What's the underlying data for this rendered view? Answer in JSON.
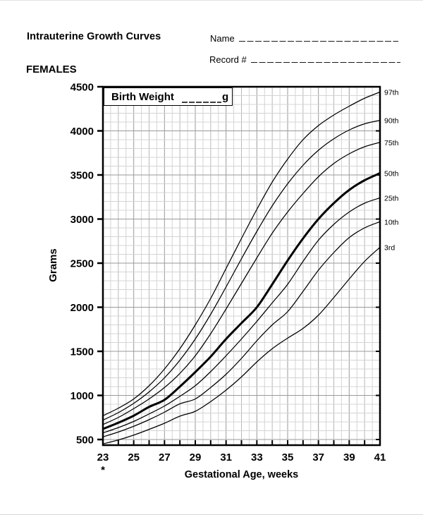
{
  "page": {
    "title": "Intrauterine Growth Curves",
    "fields": {
      "name_label": "Name",
      "record_label": "Record #"
    },
    "sex_heading": "FEMALES",
    "annotation": {
      "birth_weight_label": "Birth Weight",
      "blank": "________",
      "unit": "g"
    },
    "footnote_marker": "*"
  },
  "colors": {
    "ink": "#000000",
    "grid_minor": "#d4d4d4",
    "grid_mid": "#b8b8b8",
    "grid_major": "#9a9a9a",
    "background": "#ffffff"
  },
  "chart_data": {
    "type": "line",
    "title": "Intrauterine Growth Curves — FEMALES",
    "xlabel": "Gestational Age, weeks",
    "ylabel": "Grams",
    "x_ticks": [
      23,
      25,
      27,
      29,
      31,
      33,
      35,
      37,
      39,
      41
    ],
    "x_minor_tick_step": 1,
    "y_ticks": [
      500,
      1000,
      1500,
      2000,
      2500,
      3000,
      3500,
      4000,
      4500
    ],
    "xlim": [
      23,
      41
    ],
    "ylim": [
      436,
      4500
    ],
    "grid": {
      "on": true,
      "x_minor_step": 0.5,
      "y_minor_step": 100,
      "y_major_step": 500
    },
    "legend_position": "right-edge-labels",
    "x": [
      23,
      24,
      25,
      26,
      27,
      28,
      29,
      30,
      31,
      32,
      33,
      34,
      35,
      36,
      37,
      38,
      39,
      40,
      41
    ],
    "series": [
      {
        "name": "97th",
        "bold": false,
        "values": [
          770,
          855,
          960,
          1110,
          1300,
          1530,
          1800,
          2100,
          2440,
          2780,
          3110,
          3420,
          3680,
          3900,
          4060,
          4180,
          4280,
          4370,
          4440
        ]
      },
      {
        "name": "90th",
        "bold": false,
        "values": [
          720,
          805,
          910,
          1040,
          1200,
          1400,
          1640,
          1920,
          2230,
          2550,
          2860,
          3150,
          3400,
          3610,
          3780,
          3910,
          4010,
          4080,
          4120
        ]
      },
      {
        "name": "75th",
        "bold": false,
        "values": [
          670,
          750,
          850,
          960,
          1090,
          1250,
          1450,
          1700,
          1980,
          2270,
          2560,
          2840,
          3080,
          3290,
          3480,
          3630,
          3740,
          3820,
          3870
        ]
      },
      {
        "name": "50th",
        "bold": true,
        "values": [
          620,
          690,
          770,
          870,
          950,
          1100,
          1265,
          1440,
          1640,
          1820,
          2000,
          2260,
          2530,
          2780,
          3000,
          3180,
          3330,
          3440,
          3520
        ]
      },
      {
        "name": "25th",
        "bold": false,
        "values": [
          575,
          635,
          705,
          790,
          880,
          990,
          1110,
          1270,
          1450,
          1640,
          1840,
          2050,
          2260,
          2520,
          2760,
          2940,
          3080,
          3180,
          3240
        ]
      },
      {
        "name": "10th",
        "bold": false,
        "values": [
          530,
          585,
          650,
          725,
          810,
          905,
          960,
          1090,
          1240,
          1420,
          1620,
          1800,
          1950,
          2180,
          2420,
          2620,
          2790,
          2900,
          2970
        ]
      },
      {
        "name": "3rd",
        "bold": false,
        "values": [
          450,
          495,
          550,
          615,
          685,
          765,
          820,
          930,
          1060,
          1210,
          1380,
          1530,
          1650,
          1760,
          1910,
          2110,
          2320,
          2520,
          2680
        ]
      }
    ]
  }
}
